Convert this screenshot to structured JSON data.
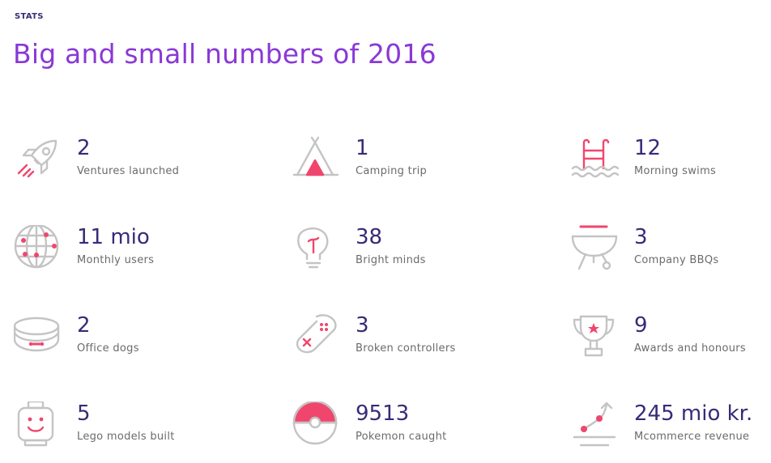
{
  "section": {
    "eyebrow": "STATS",
    "title": "Big and small numbers of 2016"
  },
  "colors": {
    "title": "#8a38d6",
    "value": "#3a2a78",
    "label": "#6b6b6b",
    "icon_line": "#c4c4c4",
    "icon_accent": "#f0466e"
  },
  "stats": [
    {
      "value": "2",
      "label": "Ventures launched",
      "icon": "rocket-icon"
    },
    {
      "value": "1",
      "label": "Camping trip",
      "icon": "tent-icon"
    },
    {
      "value": "12",
      "label": "Morning swims",
      "icon": "pool-ladder-icon"
    },
    {
      "value": "11 mio",
      "label": "Monthly users",
      "icon": "globe-icon"
    },
    {
      "value": "38",
      "label": "Bright minds",
      "icon": "lightbulb-icon"
    },
    {
      "value": "3",
      "label": "Company BBQs",
      "icon": "grill-icon"
    },
    {
      "value": "2",
      "label": "Office dogs",
      "icon": "dog-collar-icon"
    },
    {
      "value": "3",
      "label": "Broken controllers",
      "icon": "game-controller-icon"
    },
    {
      "value": "9",
      "label": "Awards and honours",
      "icon": "trophy-icon"
    },
    {
      "value": "5",
      "label": "Lego models built",
      "icon": "lego-head-icon"
    },
    {
      "value": "9513",
      "label": "Pokemon caught",
      "icon": "pokeball-icon"
    },
    {
      "value": "245 mio kr.",
      "label": "Mcommerce revenue",
      "icon": "growth-chart-icon"
    }
  ]
}
